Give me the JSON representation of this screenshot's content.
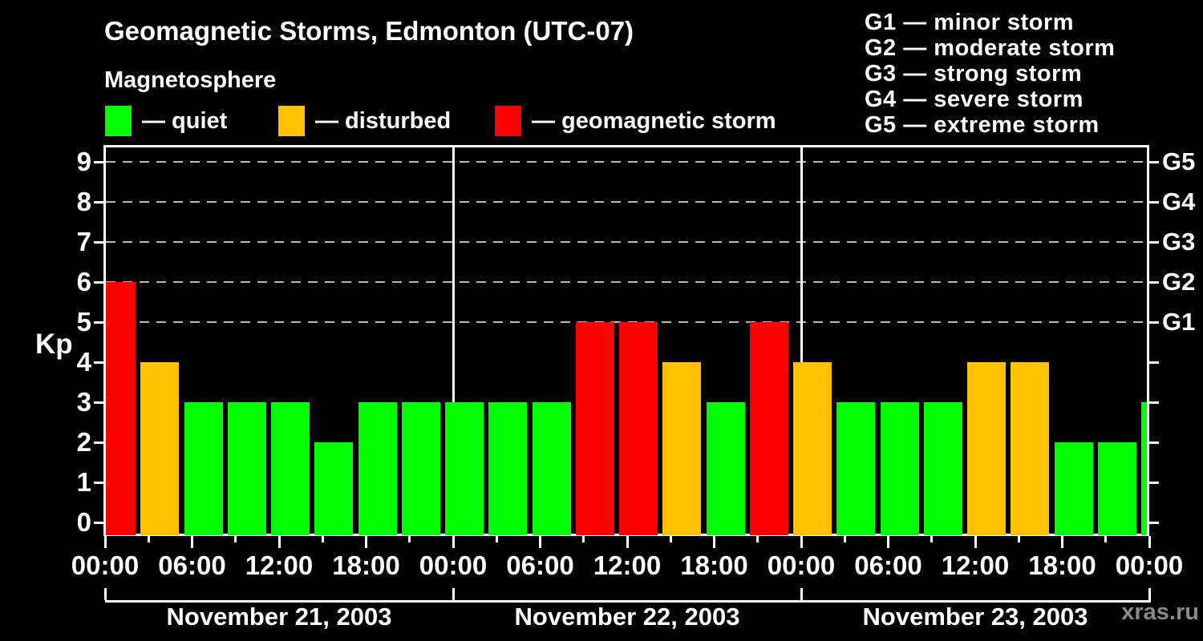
{
  "title": "Geomagnetic Storms, Edmonton (UTC-07)",
  "subtitle": "Magnetosphere",
  "colors": {
    "quiet": "#00ff00",
    "disturbed": "#ffc000",
    "storm": "#ff0000",
    "background": "#000000",
    "foreground": "#ffffff",
    "grid": "#b8b8b8",
    "watermark": "#8a8a8a"
  },
  "legend": {
    "items": [
      {
        "key": "quiet",
        "label": "— quiet"
      },
      {
        "key": "disturbed",
        "label": "— disturbed"
      },
      {
        "key": "storm",
        "label": "— geomagnetic storm"
      }
    ]
  },
  "g_legend": {
    "items": [
      "G1 — minor storm",
      "G2 — moderate storm",
      "G3 — strong storm",
      "G4 — severe storm",
      "G5 — extreme storm"
    ]
  },
  "y_axis": {
    "label": "Kp",
    "ticks": [
      0,
      1,
      2,
      3,
      4,
      5,
      6,
      7,
      8,
      9
    ]
  },
  "right_axis": {
    "items": [
      {
        "kp": 5,
        "label": "G1"
      },
      {
        "kp": 6,
        "label": "G2"
      },
      {
        "kp": 7,
        "label": "G3"
      },
      {
        "kp": 8,
        "label": "G4"
      },
      {
        "kp": 9,
        "label": "G5"
      }
    ]
  },
  "x_axis": {
    "labels": [
      "00:00",
      "06:00",
      "12:00",
      "18:00",
      "00:00",
      "06:00",
      "12:00",
      "18:00",
      "00:00",
      "06:00",
      "12:00",
      "18:00",
      "00:00"
    ]
  },
  "watermark": "xras.ru",
  "chart_data": {
    "type": "bar",
    "title": "Geomagnetic Storms, Edmonton (UTC-07)",
    "ylabel": "Kp",
    "ylim": [
      0,
      9
    ],
    "interval_hours": 3,
    "grid_levels": [
      5,
      6,
      7,
      8,
      9
    ],
    "thresholds": {
      "quiet_max": 3,
      "disturbed": 4,
      "storm_min": 5
    },
    "days": [
      {
        "date": "November 21, 2003",
        "kp": [
          6,
          4,
          3,
          3,
          3,
          2,
          3,
          3
        ]
      },
      {
        "date": "November 22, 2003",
        "kp": [
          3,
          3,
          3,
          5,
          5,
          4,
          3,
          5
        ]
      },
      {
        "date": "November 23, 2003",
        "kp": [
          4,
          3,
          3,
          3,
          4,
          4,
          2,
          2
        ]
      }
    ],
    "trailing_partial_kp": 3,
    "legend_position": "top",
    "grid": "dashed, levels 5-9 only"
  }
}
